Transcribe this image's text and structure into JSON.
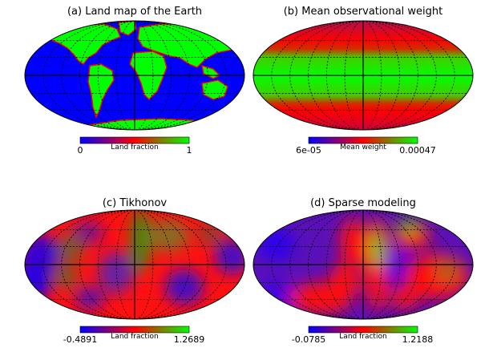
{
  "chart_data": [
    {
      "type": "heatmap",
      "projection": "mollweide",
      "title": "(a) Land map of the Earth",
      "colorbar": {
        "label": "Land fraction",
        "min_label": "0",
        "max_label": "1",
        "colors": [
          "#0000ff",
          "#ff0000",
          "#00ff00"
        ]
      },
      "pattern": "land"
    },
    {
      "type": "heatmap",
      "projection": "mollweide",
      "title": "(b) Mean observational weight",
      "colorbar": {
        "label": "Mean weight",
        "min_label": "6e-05",
        "max_label": "0.00047",
        "colors": [
          "#0000ff",
          "#ff0000",
          "#00ff00"
        ]
      },
      "pattern": "weight"
    },
    {
      "type": "heatmap",
      "projection": "mollweide",
      "title": "(c) Tikhonov",
      "colorbar": {
        "label": "Land fraction",
        "min_label": "-0.4891",
        "max_label": "1.2689",
        "colors": [
          "#0000ff",
          "#ff0000",
          "#00ff00"
        ]
      },
      "pattern": "tikhonov"
    },
    {
      "type": "heatmap",
      "projection": "mollweide",
      "title": "(d) Sparse modeling",
      "colorbar": {
        "label": "Land fraction",
        "min_label": "-0.0785",
        "max_label": "1.2188",
        "colors": [
          "#0000ff",
          "#ff0000",
          "#00ff00"
        ]
      },
      "pattern": "sparse"
    }
  ]
}
